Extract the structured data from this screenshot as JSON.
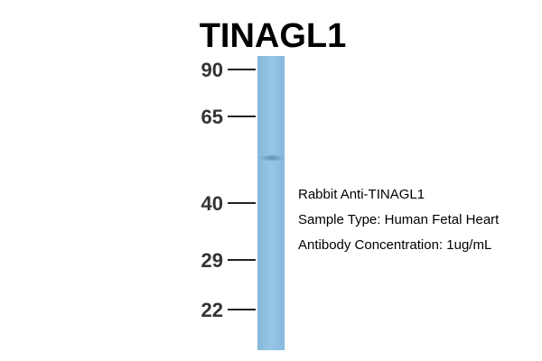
{
  "title": "TINAGL1",
  "markers": [
    "90",
    "65",
    "40",
    "29",
    "22"
  ],
  "annotations": [
    "Rabbit Anti-TINAGL1",
    "Sample Type: Human Fetal Heart",
    "Antibody Concentration: 1ug/mL"
  ]
}
